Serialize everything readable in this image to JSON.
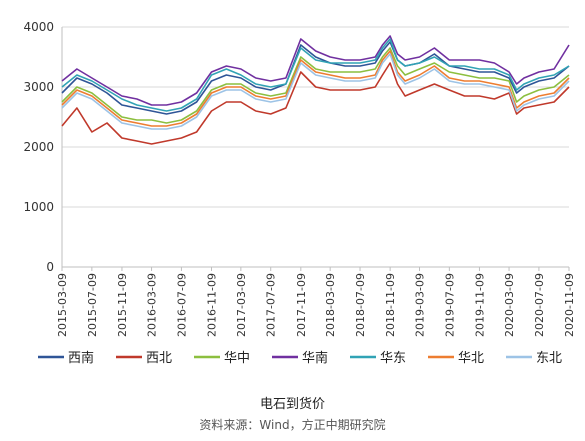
{
  "chart_data": {
    "type": "line",
    "title": "电石到货价",
    "source": "资料来源：Wind，方正中期研究院",
    "ylim": [
      0,
      4000
    ],
    "yticks": [
      0,
      1000,
      2000,
      3000,
      4000
    ],
    "x_start": "2015-03-09",
    "x_end": "2020-11-09",
    "xticks": [
      "2015-03-09",
      "2015-07-09",
      "2015-11-09",
      "2016-03-09",
      "2016-07-09",
      "2016-11-09",
      "2017-03-09",
      "2017-07-09",
      "2017-11-09",
      "2018-03-09",
      "2018-07-09",
      "2018-11-09",
      "2019-03-09",
      "2019-07-09",
      "2019-11-09",
      "2020-03-09",
      "2020-07-09",
      "2020-11-09"
    ],
    "legend_position": "bottom",
    "grid": true,
    "series": [
      {
        "name": "西南",
        "color": "#2f5597",
        "x": [
          "2015-03-09",
          "2015-05-09",
          "2015-07-09",
          "2015-09-09",
          "2015-11-09",
          "2016-01-09",
          "2016-03-09",
          "2016-05-09",
          "2016-07-09",
          "2016-09-09",
          "2016-11-09",
          "2017-01-09",
          "2017-03-09",
          "2017-05-09",
          "2017-07-09",
          "2017-09-09",
          "2017-11-09",
          "2018-01-09",
          "2018-03-09",
          "2018-05-09",
          "2018-07-09",
          "2018-09-09",
          "2018-10-09",
          "2018-11-09",
          "2018-12-09",
          "2019-01-09",
          "2019-03-09",
          "2019-05-09",
          "2019-07-09",
          "2019-09-09",
          "2019-11-09",
          "2020-01-09",
          "2020-03-09",
          "2020-04-09",
          "2020-05-09",
          "2020-07-09",
          "2020-09-09",
          "2020-11-09"
        ],
        "y": [
          2900,
          3150,
          3050,
          2900,
          2700,
          2650,
          2600,
          2550,
          2600,
          2750,
          3100,
          3200,
          3150,
          3000,
          2950,
          3050,
          3700,
          3500,
          3400,
          3350,
          3350,
          3400,
          3600,
          3750,
          3450,
          3350,
          3400,
          3550,
          3350,
          3300,
          3250,
          3250,
          3150,
          2900,
          3000,
          3100,
          3150,
          3350
        ]
      },
      {
        "name": "西北",
        "color": "#c0392b",
        "x": [
          "2015-03-09",
          "2015-05-09",
          "2015-07-09",
          "2015-09-09",
          "2015-11-09",
          "2016-01-09",
          "2016-03-09",
          "2016-05-09",
          "2016-07-09",
          "2016-09-09",
          "2016-11-09",
          "2017-01-09",
          "2017-03-09",
          "2017-05-09",
          "2017-07-09",
          "2017-09-09",
          "2017-11-09",
          "2018-01-09",
          "2018-03-09",
          "2018-05-09",
          "2018-07-09",
          "2018-09-09",
          "2018-10-09",
          "2018-11-09",
          "2018-12-09",
          "2019-01-09",
          "2019-03-09",
          "2019-05-09",
          "2019-07-09",
          "2019-09-09",
          "2019-11-09",
          "2020-01-09",
          "2020-03-09",
          "2020-04-09",
          "2020-05-09",
          "2020-07-09",
          "2020-09-09",
          "2020-11-09"
        ],
        "y": [
          2350,
          2650,
          2250,
          2400,
          2150,
          2100,
          2050,
          2100,
          2150,
          2250,
          2600,
          2750,
          2750,
          2600,
          2550,
          2650,
          3250,
          3000,
          2950,
          2950,
          2950,
          3000,
          3200,
          3400,
          3050,
          2850,
          2950,
          3050,
          2950,
          2850,
          2850,
          2800,
          2900,
          2550,
          2650,
          2700,
          2750,
          3000
        ]
      },
      {
        "name": "华中",
        "color": "#8cbf3f",
        "x": [
          "2015-03-09",
          "2015-05-09",
          "2015-07-09",
          "2015-09-09",
          "2015-11-09",
          "2016-01-09",
          "2016-03-09",
          "2016-05-09",
          "2016-07-09",
          "2016-09-09",
          "2016-11-09",
          "2017-01-09",
          "2017-03-09",
          "2017-05-09",
          "2017-07-09",
          "2017-09-09",
          "2017-11-09",
          "2018-01-09",
          "2018-03-09",
          "2018-05-09",
          "2018-07-09",
          "2018-09-09",
          "2018-10-09",
          "2018-11-09",
          "2018-12-09",
          "2019-01-09",
          "2019-03-09",
          "2019-05-09",
          "2019-07-09",
          "2019-09-09",
          "2019-11-09",
          "2020-01-09",
          "2020-03-09",
          "2020-04-09",
          "2020-05-09",
          "2020-07-09",
          "2020-09-09",
          "2020-11-09"
        ],
        "y": [
          2750,
          3000,
          2900,
          2700,
          2500,
          2450,
          2450,
          2400,
          2450,
          2600,
          2950,
          3050,
          3050,
          2900,
          2850,
          2900,
          3500,
          3300,
          3250,
          3250,
          3250,
          3300,
          3500,
          3650,
          3350,
          3200,
          3300,
          3400,
          3250,
          3200,
          3150,
          3150,
          3100,
          2750,
          2850,
          2950,
          3000,
          3200
        ]
      },
      {
        "name": "华南",
        "color": "#7030a0",
        "x": [
          "2015-03-09",
          "2015-05-09",
          "2015-07-09",
          "2015-09-09",
          "2015-11-09",
          "2016-01-09",
          "2016-03-09",
          "2016-05-09",
          "2016-07-09",
          "2016-09-09",
          "2016-11-09",
          "2017-01-09",
          "2017-03-09",
          "2017-05-09",
          "2017-07-09",
          "2017-09-09",
          "2017-11-09",
          "2018-01-09",
          "2018-03-09",
          "2018-05-09",
          "2018-07-09",
          "2018-09-09",
          "2018-10-09",
          "2018-11-09",
          "2018-12-09",
          "2019-01-09",
          "2019-03-09",
          "2019-05-09",
          "2019-07-09",
          "2019-09-09",
          "2019-11-09",
          "2020-01-09",
          "2020-03-09",
          "2020-04-09",
          "2020-05-09",
          "2020-07-09",
          "2020-09-09",
          "2020-11-09"
        ],
        "y": [
          3100,
          3300,
          3150,
          3000,
          2850,
          2800,
          2700,
          2700,
          2750,
          2900,
          3250,
          3350,
          3300,
          3150,
          3100,
          3150,
          3800,
          3600,
          3500,
          3450,
          3450,
          3500,
          3700,
          3850,
          3550,
          3450,
          3500,
          3650,
          3450,
          3450,
          3450,
          3400,
          3250,
          3050,
          3150,
          3250,
          3300,
          3700
        ]
      },
      {
        "name": "华东",
        "color": "#31a3b5",
        "x": [
          "2015-03-09",
          "2015-05-09",
          "2015-07-09",
          "2015-09-09",
          "2015-11-09",
          "2016-01-09",
          "2016-03-09",
          "2016-05-09",
          "2016-07-09",
          "2016-09-09",
          "2016-11-09",
          "2017-01-09",
          "2017-03-09",
          "2017-05-09",
          "2017-07-09",
          "2017-09-09",
          "2017-11-09",
          "2018-01-09",
          "2018-03-09",
          "2018-05-09",
          "2018-07-09",
          "2018-09-09",
          "2018-10-09",
          "2018-11-09",
          "2018-12-09",
          "2019-01-09",
          "2019-03-09",
          "2019-05-09",
          "2019-07-09",
          "2019-09-09",
          "2019-11-09",
          "2020-01-09",
          "2020-03-09",
          "2020-04-09",
          "2020-05-09",
          "2020-07-09",
          "2020-09-09",
          "2020-11-09"
        ],
        "y": [
          3000,
          3200,
          3100,
          2950,
          2800,
          2700,
          2650,
          2600,
          2650,
          2800,
          3200,
          3300,
          3200,
          3050,
          3000,
          3050,
          3650,
          3450,
          3400,
          3400,
          3400,
          3450,
          3650,
          3800,
          3450,
          3350,
          3400,
          3500,
          3350,
          3350,
          3300,
          3300,
          3200,
          2950,
          3050,
          3150,
          3200,
          3350
        ]
      },
      {
        "name": "华北",
        "color": "#ed7d31",
        "x": [
          "2015-03-09",
          "2015-05-09",
          "2015-07-09",
          "2015-09-09",
          "2015-11-09",
          "2016-01-09",
          "2016-03-09",
          "2016-05-09",
          "2016-07-09",
          "2016-09-09",
          "2016-11-09",
          "2017-01-09",
          "2017-03-09",
          "2017-05-09",
          "2017-07-09",
          "2017-09-09",
          "2017-11-09",
          "2018-01-09",
          "2018-03-09",
          "2018-05-09",
          "2018-07-09",
          "2018-09-09",
          "2018-10-09",
          "2018-11-09",
          "2018-12-09",
          "2019-01-09",
          "2019-03-09",
          "2019-05-09",
          "2019-07-09",
          "2019-09-09",
          "2019-11-09",
          "2020-01-09",
          "2020-03-09",
          "2020-04-09",
          "2020-05-09",
          "2020-07-09",
          "2020-09-09",
          "2020-11-09"
        ],
        "y": [
          2700,
          2950,
          2850,
          2650,
          2450,
          2400,
          2350,
          2350,
          2400,
          2550,
          2900,
          3000,
          3000,
          2850,
          2800,
          2850,
          3450,
          3250,
          3200,
          3150,
          3150,
          3200,
          3450,
          3600,
          3250,
          3100,
          3200,
          3350,
          3150,
          3100,
          3100,
          3050,
          3000,
          2650,
          2750,
          2850,
          2900,
          3150
        ]
      },
      {
        "name": "东北",
        "color": "#9dc3e6",
        "x": [
          "2015-03-09",
          "2015-05-09",
          "2015-07-09",
          "2015-09-09",
          "2015-11-09",
          "2016-01-09",
          "2016-03-09",
          "2016-05-09",
          "2016-07-09",
          "2016-09-09",
          "2016-11-09",
          "2017-01-09",
          "2017-03-09",
          "2017-05-09",
          "2017-07-09",
          "2017-09-09",
          "2017-11-09",
          "2018-01-09",
          "2018-03-09",
          "2018-05-09",
          "2018-07-09",
          "2018-09-09",
          "2018-10-09",
          "2018-11-09",
          "2018-12-09",
          "2019-01-09",
          "2019-03-09",
          "2019-05-09",
          "2019-07-09",
          "2019-09-09",
          "2019-11-09",
          "2020-01-09",
          "2020-03-09",
          "2020-04-09",
          "2020-05-09",
          "2020-07-09",
          "2020-09-09",
          "2020-11-09"
        ],
        "y": [
          2650,
          2900,
          2800,
          2600,
          2400,
          2350,
          2300,
          2300,
          2350,
          2500,
          2850,
          2950,
          2950,
          2800,
          2750,
          2800,
          3400,
          3200,
          3150,
          3100,
          3100,
          3150,
          3400,
          3550,
          3200,
          3050,
          3150,
          3300,
          3100,
          3050,
          3050,
          3000,
          2950,
          2600,
          2700,
          2800,
          2850,
          3100
        ]
      }
    ]
  }
}
